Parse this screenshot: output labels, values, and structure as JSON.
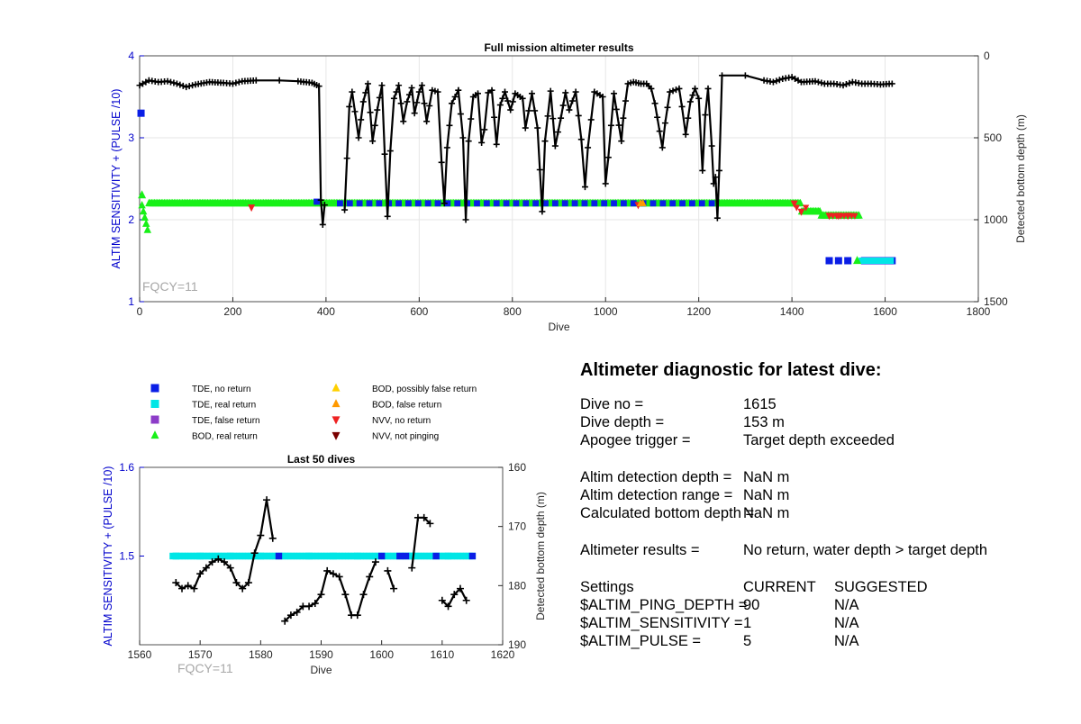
{
  "colors": {
    "axis_left": "#0000cc",
    "tde_no_return": "#0a1ee6",
    "tde_real_return": "#00e6e6",
    "tde_false_return": "#8c3cc8",
    "bod_real_return": "#18f018",
    "bod_possibly_false": "#ffd000",
    "bod_false_return": "#ff9900",
    "nvv_no_return": "#ee2222",
    "nvv_not_pinging": "#7a0000",
    "depth_line": "#000000",
    "grid": "#e6e6e6",
    "fqcy_text": "#a8a8a8"
  },
  "chart_data": [
    {
      "type": "scatter",
      "title": "Full mission altimeter results",
      "xlabel": "Dive",
      "ylabel": "ALTIM SENSITIVITY + (PULSE /10)",
      "y2label": "Detected bottom depth (m)",
      "xlim": [
        0,
        1800
      ],
      "ylim": [
        1,
        4
      ],
      "y2lim": [
        0,
        1500
      ],
      "y2_reversed": true,
      "x_ticks": [
        0,
        200,
        400,
        600,
        800,
        1000,
        1200,
        1400,
        1600,
        1800
      ],
      "y_ticks": [
        1,
        2,
        3,
        4
      ],
      "y2_ticks": [
        0,
        500,
        1000,
        1500
      ],
      "grid": true,
      "annotation": "FQCY=11",
      "series": [
        {
          "name": "TDE, no return",
          "points": [
            [
              3,
              3.3
            ],
            [
              1480,
              1.5
            ],
            [
              1500,
              1.5
            ],
            [
              1520,
              1.5
            ],
            [
              1556,
              1.5
            ],
            [
              1562,
              1.5
            ],
            [
              1570,
              1.5
            ],
            [
              1578,
              1.5
            ],
            [
              1585,
              1.5
            ],
            [
              1592,
              1.5
            ],
            [
              1600,
              1.5
            ],
            [
              1608,
              1.5
            ],
            [
              1615,
              1.5
            ]
          ]
        },
        {
          "name": "TDE, real return",
          "points": [
            [
              1550,
              1.5
            ],
            [
              1558,
              1.5
            ],
            [
              1566,
              1.5
            ],
            [
              1574,
              1.5
            ],
            [
              1582,
              1.5
            ],
            [
              1590,
              1.5
            ],
            [
              1598,
              1.5
            ],
            [
              1604,
              1.5
            ],
            [
              1612,
              1.5
            ]
          ]
        },
        {
          "name": "BOD, real return",
          "points": [
            [
              5,
              2.3
            ],
            [
              1540,
              1.5
            ]
          ]
        },
        {
          "name": "NVV, no return",
          "points": [
            [
              240,
              2.15
            ],
            [
              1070,
              2.18
            ],
            [
              1405,
              2.2
            ],
            [
              1420,
              2.1
            ],
            [
              1480,
              2.05
            ],
            [
              1500,
              2.05
            ],
            [
              1520,
              2.05
            ]
          ]
        },
        {
          "name": "Detected bottom depth",
          "axis": "y2",
          "points": [
            [
              0,
              180
            ],
            [
              20,
              150
            ],
            [
              40,
              160
            ],
            [
              60,
              155
            ],
            [
              80,
              170
            ],
            [
              100,
              190
            ],
            [
              120,
              175
            ],
            [
              150,
              160
            ],
            [
              180,
              165
            ],
            [
              200,
              170
            ],
            [
              220,
              155
            ],
            [
              250,
              150
            ],
            [
              300,
              150
            ],
            [
              340,
              155
            ],
            [
              370,
              165
            ],
            [
              385,
              185
            ],
            [
              389,
              880
            ],
            [
              393,
              1030
            ],
            [
              397,
              910
            ],
            [
              440,
              940
            ],
            [
              450,
              310
            ],
            [
              456,
              220
            ],
            [
              462,
              340
            ],
            [
              470,
              500
            ],
            [
              480,
              280
            ],
            [
              490,
              170
            ],
            [
              500,
              520
            ],
            [
              510,
              330
            ],
            [
              520,
              180
            ],
            [
              526,
              600
            ],
            [
              532,
              980
            ],
            [
              538,
              580
            ],
            [
              546,
              260
            ],
            [
              556,
              180
            ],
            [
              566,
              400
            ],
            [
              574,
              280
            ],
            [
              584,
              195
            ],
            [
              590,
              350
            ],
            [
              600,
              220
            ],
            [
              606,
              180
            ],
            [
              616,
              400
            ],
            [
              628,
              210
            ],
            [
              640,
              220
            ],
            [
              648,
              650
            ],
            [
              654,
              900
            ],
            [
              660,
              560
            ],
            [
              670,
              290
            ],
            [
              684,
              210
            ],
            [
              694,
              500
            ],
            [
              700,
              1000
            ],
            [
              706,
              520
            ],
            [
              716,
              250
            ],
            [
              726,
              230
            ],
            [
              734,
              530
            ],
            [
              740,
              450
            ],
            [
              748,
              225
            ],
            [
              756,
              210
            ],
            [
              766,
              540
            ],
            [
              774,
              300
            ],
            [
              784,
              220
            ],
            [
              796,
              330
            ],
            [
              806,
              230
            ],
            [
              822,
              260
            ],
            [
              828,
              440
            ],
            [
              842,
              230
            ],
            [
              854,
              440
            ],
            [
              864,
              950
            ],
            [
              870,
              520
            ],
            [
              882,
              215
            ],
            [
              892,
              550
            ],
            [
              904,
              380
            ],
            [
              914,
              225
            ],
            [
              922,
              330
            ],
            [
              936,
              220
            ],
            [
              948,
              510
            ],
            [
              956,
              800
            ],
            [
              962,
              560
            ],
            [
              976,
              220
            ],
            [
              994,
              250
            ],
            [
              1000,
              780
            ],
            [
              1006,
              620
            ],
            [
              1018,
              230
            ],
            [
              1034,
              520
            ],
            [
              1038,
              380
            ],
            [
              1048,
              170
            ],
            [
              1060,
              160
            ],
            [
              1076,
              170
            ],
            [
              1088,
              170
            ],
            [
              1098,
              200
            ],
            [
              1106,
              290
            ],
            [
              1116,
              460
            ],
            [
              1122,
              560
            ],
            [
              1128,
              410
            ],
            [
              1138,
              220
            ],
            [
              1158,
              200
            ],
            [
              1164,
              310
            ],
            [
              1172,
              480
            ],
            [
              1182,
              280
            ],
            [
              1192,
              200
            ],
            [
              1200,
              260
            ],
            [
              1208,
              700
            ],
            [
              1214,
              360
            ],
            [
              1220,
              200
            ],
            [
              1228,
              550
            ],
            [
              1232,
              780
            ],
            [
              1236,
              740
            ],
            [
              1240,
              990
            ],
            [
              1244,
              700
            ],
            [
              1250,
              120
            ],
            [
              1300,
              120
            ],
            [
              1340,
              150
            ],
            [
              1360,
              160
            ],
            [
              1380,
              140
            ],
            [
              1400,
              130
            ],
            [
              1420,
              160
            ],
            [
              1450,
              155
            ],
            [
              1470,
              170
            ],
            [
              1490,
              170
            ],
            [
              1510,
              180
            ],
            [
              1530,
              160
            ],
            [
              1550,
              170
            ],
            [
              1570,
              170
            ],
            [
              1590,
              175
            ],
            [
              1615,
              170
            ]
          ]
        }
      ]
    },
    {
      "type": "scatter",
      "title": "Last 50 dives",
      "xlabel": "Dive",
      "ylabel": "ALTIM SENSITIVITY + (PULSE /10)",
      "y2label": "Detected bottom depth (m)",
      "xlim": [
        1560,
        1620
      ],
      "ylim": [
        1.4,
        1.6
      ],
      "y2lim": [
        160,
        190
      ],
      "y2_reversed": true,
      "x_ticks": [
        1560,
        1570,
        1580,
        1590,
        1600,
        1610,
        1620
      ],
      "y_ticks": [
        1.5,
        1.6
      ],
      "y2_ticks": [
        160,
        170,
        180,
        190
      ],
      "grid": false,
      "annotation": "FQCY=11",
      "series": [
        {
          "name": "TDE, no return",
          "points": [
            [
              1583,
              1.5
            ],
            [
              1600,
              1.5
            ],
            [
              1603,
              1.5
            ],
            [
              1604,
              1.5
            ],
            [
              1609,
              1.5
            ],
            [
              1615,
              1.5
            ]
          ]
        },
        {
          "name": "TDE, real return",
          "points": [
            [
              1566,
              1.5
            ],
            [
              1570,
              1.5
            ],
            [
              1575,
              1.5
            ],
            [
              1580,
              1.5
            ],
            [
              1588,
              1.5
            ],
            [
              1592,
              1.5
            ],
            [
              1596,
              1.5
            ],
            [
              1605,
              1.5
            ],
            [
              1611,
              1.5
            ]
          ]
        },
        {
          "name": "Detected bottom depth",
          "axis": "y2",
          "segments": [
            [
              [
                1566,
                179.5
              ],
              [
                1567,
                180.5
              ],
              [
                1568,
                180
              ],
              [
                1569,
                180.5
              ],
              [
                1570,
                178
              ],
              [
                1571,
                177
              ],
              [
                1572,
                176
              ],
              [
                1573,
                175.5
              ],
              [
                1574,
                176
              ],
              [
                1575,
                177
              ],
              [
                1576,
                179.5
              ],
              [
                1577,
                180.5
              ],
              [
                1578,
                179.5
              ],
              [
                1579,
                174.5
              ],
              [
                1580,
                171.5
              ],
              [
                1581,
                165.5
              ],
              [
                1582,
                172
              ]
            ],
            [
              [
                1584,
                186
              ],
              [
                1585,
                185
              ],
              [
                1586,
                184.5
              ],
              [
                1587,
                183.5
              ],
              [
                1588,
                183.5
              ],
              [
                1589,
                183
              ],
              [
                1590,
                181.5
              ],
              [
                1591,
                177.5
              ],
              [
                1592,
                178
              ],
              [
                1593,
                178.5
              ],
              [
                1594,
                181.5
              ],
              [
                1595,
                185
              ],
              [
                1596,
                185
              ],
              [
                1597,
                181.5
              ],
              [
                1598,
                178.5
              ],
              [
                1599,
                176
              ]
            ],
            [
              [
                1601,
                177.5
              ],
              [
                1602,
                180.5
              ]
            ],
            [
              [
                1605,
                177
              ],
              [
                1606,
                168.5
              ],
              [
                1607,
                168.5
              ],
              [
                1608,
                169.5
              ]
            ],
            [
              [
                1610,
                182.5
              ],
              [
                1611,
                183.5
              ],
              [
                1612,
                181.5
              ],
              [
                1613,
                180.5
              ],
              [
                1614,
                182.5
              ]
            ]
          ]
        }
      ]
    }
  ],
  "legend": [
    {
      "label": "TDE, no return",
      "shape": "square",
      "color": "#0a1ee6"
    },
    {
      "label": "TDE, real return",
      "shape": "square",
      "color": "#00e6e6"
    },
    {
      "label": "TDE, false return",
      "shape": "square",
      "color": "#8c3cc8"
    },
    {
      "label": "BOD, real return",
      "shape": "triangle-up",
      "color": "#18f018"
    },
    {
      "label": "BOD, possibly false return",
      "shape": "triangle-up",
      "color": "#ffd000"
    },
    {
      "label": "BOD, false return",
      "shape": "triangle-up",
      "color": "#ff9900"
    },
    {
      "label": "NVV, no return",
      "shape": "triangle-down",
      "color": "#ee2222"
    },
    {
      "label": "NVV, not pinging",
      "shape": "triangle-down",
      "color": "#7a0000"
    }
  ],
  "diagnostic": {
    "title": "Altimeter diagnostic for latest dive:",
    "dive_no_label": "Dive no =",
    "dive_no_value": "1615",
    "dive_depth_label": "Dive depth =",
    "dive_depth_value": "153 m",
    "apogee_label": "Apogee trigger =",
    "apogee_value": "Target depth exceeded",
    "det_depth_label": "Altim detection depth =",
    "det_depth_value": "NaN m",
    "det_range_label": "Altim detection range =",
    "det_range_value": "NaN m",
    "calc_bottom_label": "Calculated bottom depth =",
    "calc_bottom_value": "NaN m",
    "results_label": "Altimeter results =",
    "results_value": "No return, water depth > target depth",
    "settings_label": "Settings",
    "current_label": "CURRENT",
    "suggested_label": "SUGGESTED",
    "settings": [
      {
        "name": "$ALTIM_PING_DEPTH =",
        "current": "90",
        "suggested": "N/A"
      },
      {
        "name": "$ALTIM_SENSITIVITY =",
        "current": "1",
        "suggested": "N/A"
      },
      {
        "name": "$ALTIM_PULSE =",
        "current": "5",
        "suggested": "N/A"
      }
    ]
  }
}
